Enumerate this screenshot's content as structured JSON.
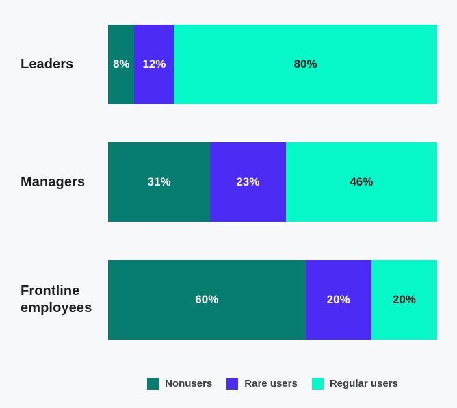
{
  "chart_data": {
    "type": "bar",
    "orientation": "horizontal",
    "stacked": true,
    "title": "",
    "unit": "%",
    "categories": [
      "Leaders",
      "Managers",
      "Frontline employees"
    ],
    "series": [
      {
        "name": "Nonusers",
        "color": "#077d70",
        "label_color": "#ffffff",
        "values": [
          8,
          31,
          60
        ]
      },
      {
        "name": "Rare users",
        "color": "#4c2bf5",
        "label_color": "#ffffff",
        "values": [
          12,
          23,
          20
        ]
      },
      {
        "name": "Regular users",
        "color": "#06f7c8",
        "label_color": "#14181d",
        "values": [
          80,
          46,
          20
        ]
      }
    ],
    "value_labels": [
      [
        "8%",
        "12%",
        "80%"
      ],
      [
        "31%",
        "23%",
        "46%"
      ],
      [
        "60%",
        "20%",
        "20%"
      ]
    ],
    "x_range": [
      0,
      100
    ],
    "grid": false,
    "axes_visible": false,
    "legend_position": "bottom-center"
  },
  "colors": {
    "background": "#f7f8fa",
    "category_label_text": "#1b1d22",
    "legend_text": "#3a3f46"
  }
}
